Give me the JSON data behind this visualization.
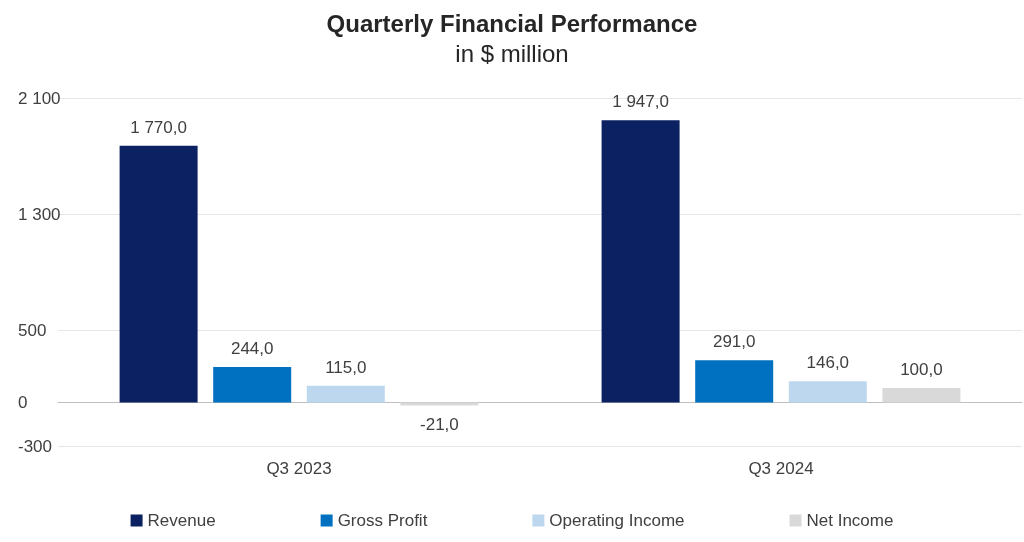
{
  "chart_data": {
    "type": "bar",
    "title": "Quarterly Financial Performance",
    "subtitle": "in $ million",
    "categories": [
      "Q3 2023",
      "Q3 2024"
    ],
    "series": [
      {
        "name": "Revenue",
        "color": "#0b2161",
        "values": [
          1770,
          1947
        ],
        "value_labels": [
          "1 770,0",
          "1 947,0"
        ]
      },
      {
        "name": "Gross Profit",
        "color": "#0070c0",
        "values": [
          244,
          291
        ],
        "value_labels": [
          "244,0",
          "291,0"
        ]
      },
      {
        "name": "Operating Income",
        "color": "#bdd7ee",
        "values": [
          115,
          146
        ],
        "value_labels": [
          "115,0",
          "146,0"
        ]
      },
      {
        "name": "Net Income",
        "color": "#d9d9d9",
        "values": [
          -21,
          100
        ],
        "value_labels": [
          "-21,0",
          "100,0"
        ]
      }
    ],
    "ylim": [
      -300,
      2100
    ],
    "yticks": [
      -300,
      0,
      500,
      {
        "value": 1300,
        "label": "1 300"
      },
      {
        "value": 2100,
        "label": "2 100"
      }
    ],
    "grid": "y",
    "legend": "bottom"
  }
}
